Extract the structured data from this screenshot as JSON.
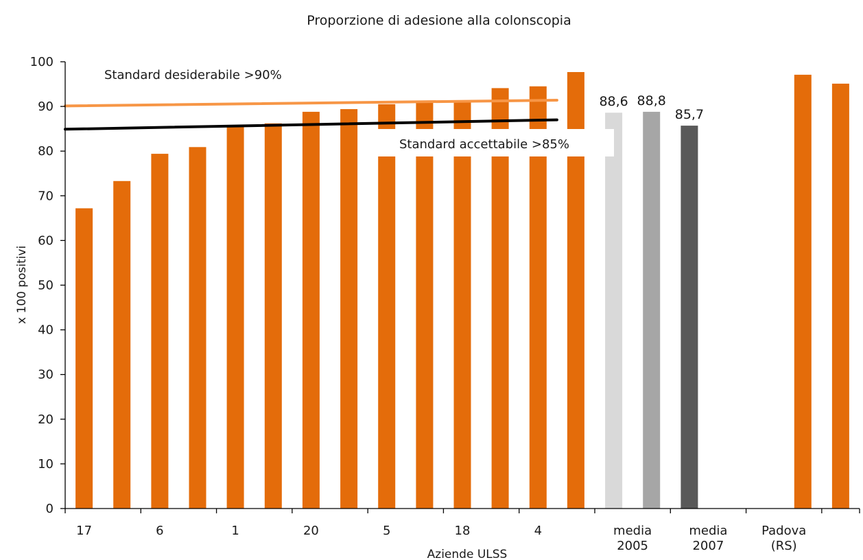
{
  "chart_data": {
    "type": "bar",
    "title": "Proporzione di adesione alla colonscopia",
    "xlabel": "Aziende ULSS",
    "ylabel": "x 100 positivi",
    "ylim": [
      0,
      100
    ],
    "yticks": [
      0,
      10,
      20,
      30,
      40,
      50,
      60,
      70,
      80,
      90,
      100
    ],
    "grid": false,
    "legend": "none",
    "bars": [
      {
        "value": 67.2,
        "color": "#E46C0A"
      },
      {
        "value": 73.3,
        "color": "#E46C0A"
      },
      {
        "value": 79.4,
        "color": "#E46C0A"
      },
      {
        "value": 80.9,
        "color": "#E46C0A"
      },
      {
        "value": 85.8,
        "color": "#E46C0A"
      },
      {
        "value": 86.2,
        "color": "#E46C0A"
      },
      {
        "value": 88.8,
        "color": "#E46C0A"
      },
      {
        "value": 89.4,
        "color": "#E46C0A"
      },
      {
        "value": 90.5,
        "color": "#E46C0A"
      },
      {
        "value": 90.9,
        "color": "#E46C0A"
      },
      {
        "value": 91.2,
        "color": "#E46C0A"
      },
      {
        "value": 94.1,
        "color": "#E46C0A"
      },
      {
        "value": 94.5,
        "color": "#E46C0A"
      },
      {
        "value": 97.7,
        "color": "#E46C0A"
      },
      {
        "value": 88.6,
        "color": "#D9D9D9",
        "label": "88,6"
      },
      {
        "value": 88.8,
        "color": "#A6A6A6",
        "label": "88,8"
      },
      {
        "value": 85.7,
        "color": "#595959",
        "label": "85,7"
      },
      {
        "value": null,
        "color": "#E46C0A"
      },
      {
        "value": null,
        "color": "#E46C0A"
      },
      {
        "value": 97.1,
        "color": "#E46C0A"
      },
      {
        "value": 95.1,
        "color": "#E46C0A"
      }
    ],
    "category_labels": [
      {
        "pos": 0,
        "lines": [
          "17"
        ]
      },
      {
        "pos": 2,
        "lines": [
          "6"
        ]
      },
      {
        "pos": 4,
        "lines": [
          "1"
        ]
      },
      {
        "pos": 6,
        "lines": [
          "20"
        ]
      },
      {
        "pos": 8,
        "lines": [
          "5"
        ]
      },
      {
        "pos": 10,
        "lines": [
          "18"
        ]
      },
      {
        "pos": 12,
        "lines": [
          "4"
        ]
      },
      {
        "pos": 14.5,
        "lines": [
          "media",
          "2005"
        ]
      },
      {
        "pos": 16.5,
        "lines": [
          "media",
          "2007"
        ]
      },
      {
        "pos": 18.5,
        "lines": [
          "Padova",
          "(RS)"
        ]
      }
    ],
    "x_tick_boundaries": [
      0,
      2,
      4,
      6,
      8,
      10,
      12,
      14,
      16,
      18,
      20,
      21
    ],
    "reference_lines": [
      {
        "name": "Standard desiderabile >90%",
        "start": [
          0,
          90.1
        ],
        "end": [
          13,
          91.4
        ],
        "color": "#F79646"
      },
      {
        "name": "Standard accettabile >85%",
        "start": [
          0,
          84.9
        ],
        "end": [
          13,
          87.0
        ],
        "color": "#000000"
      }
    ]
  }
}
